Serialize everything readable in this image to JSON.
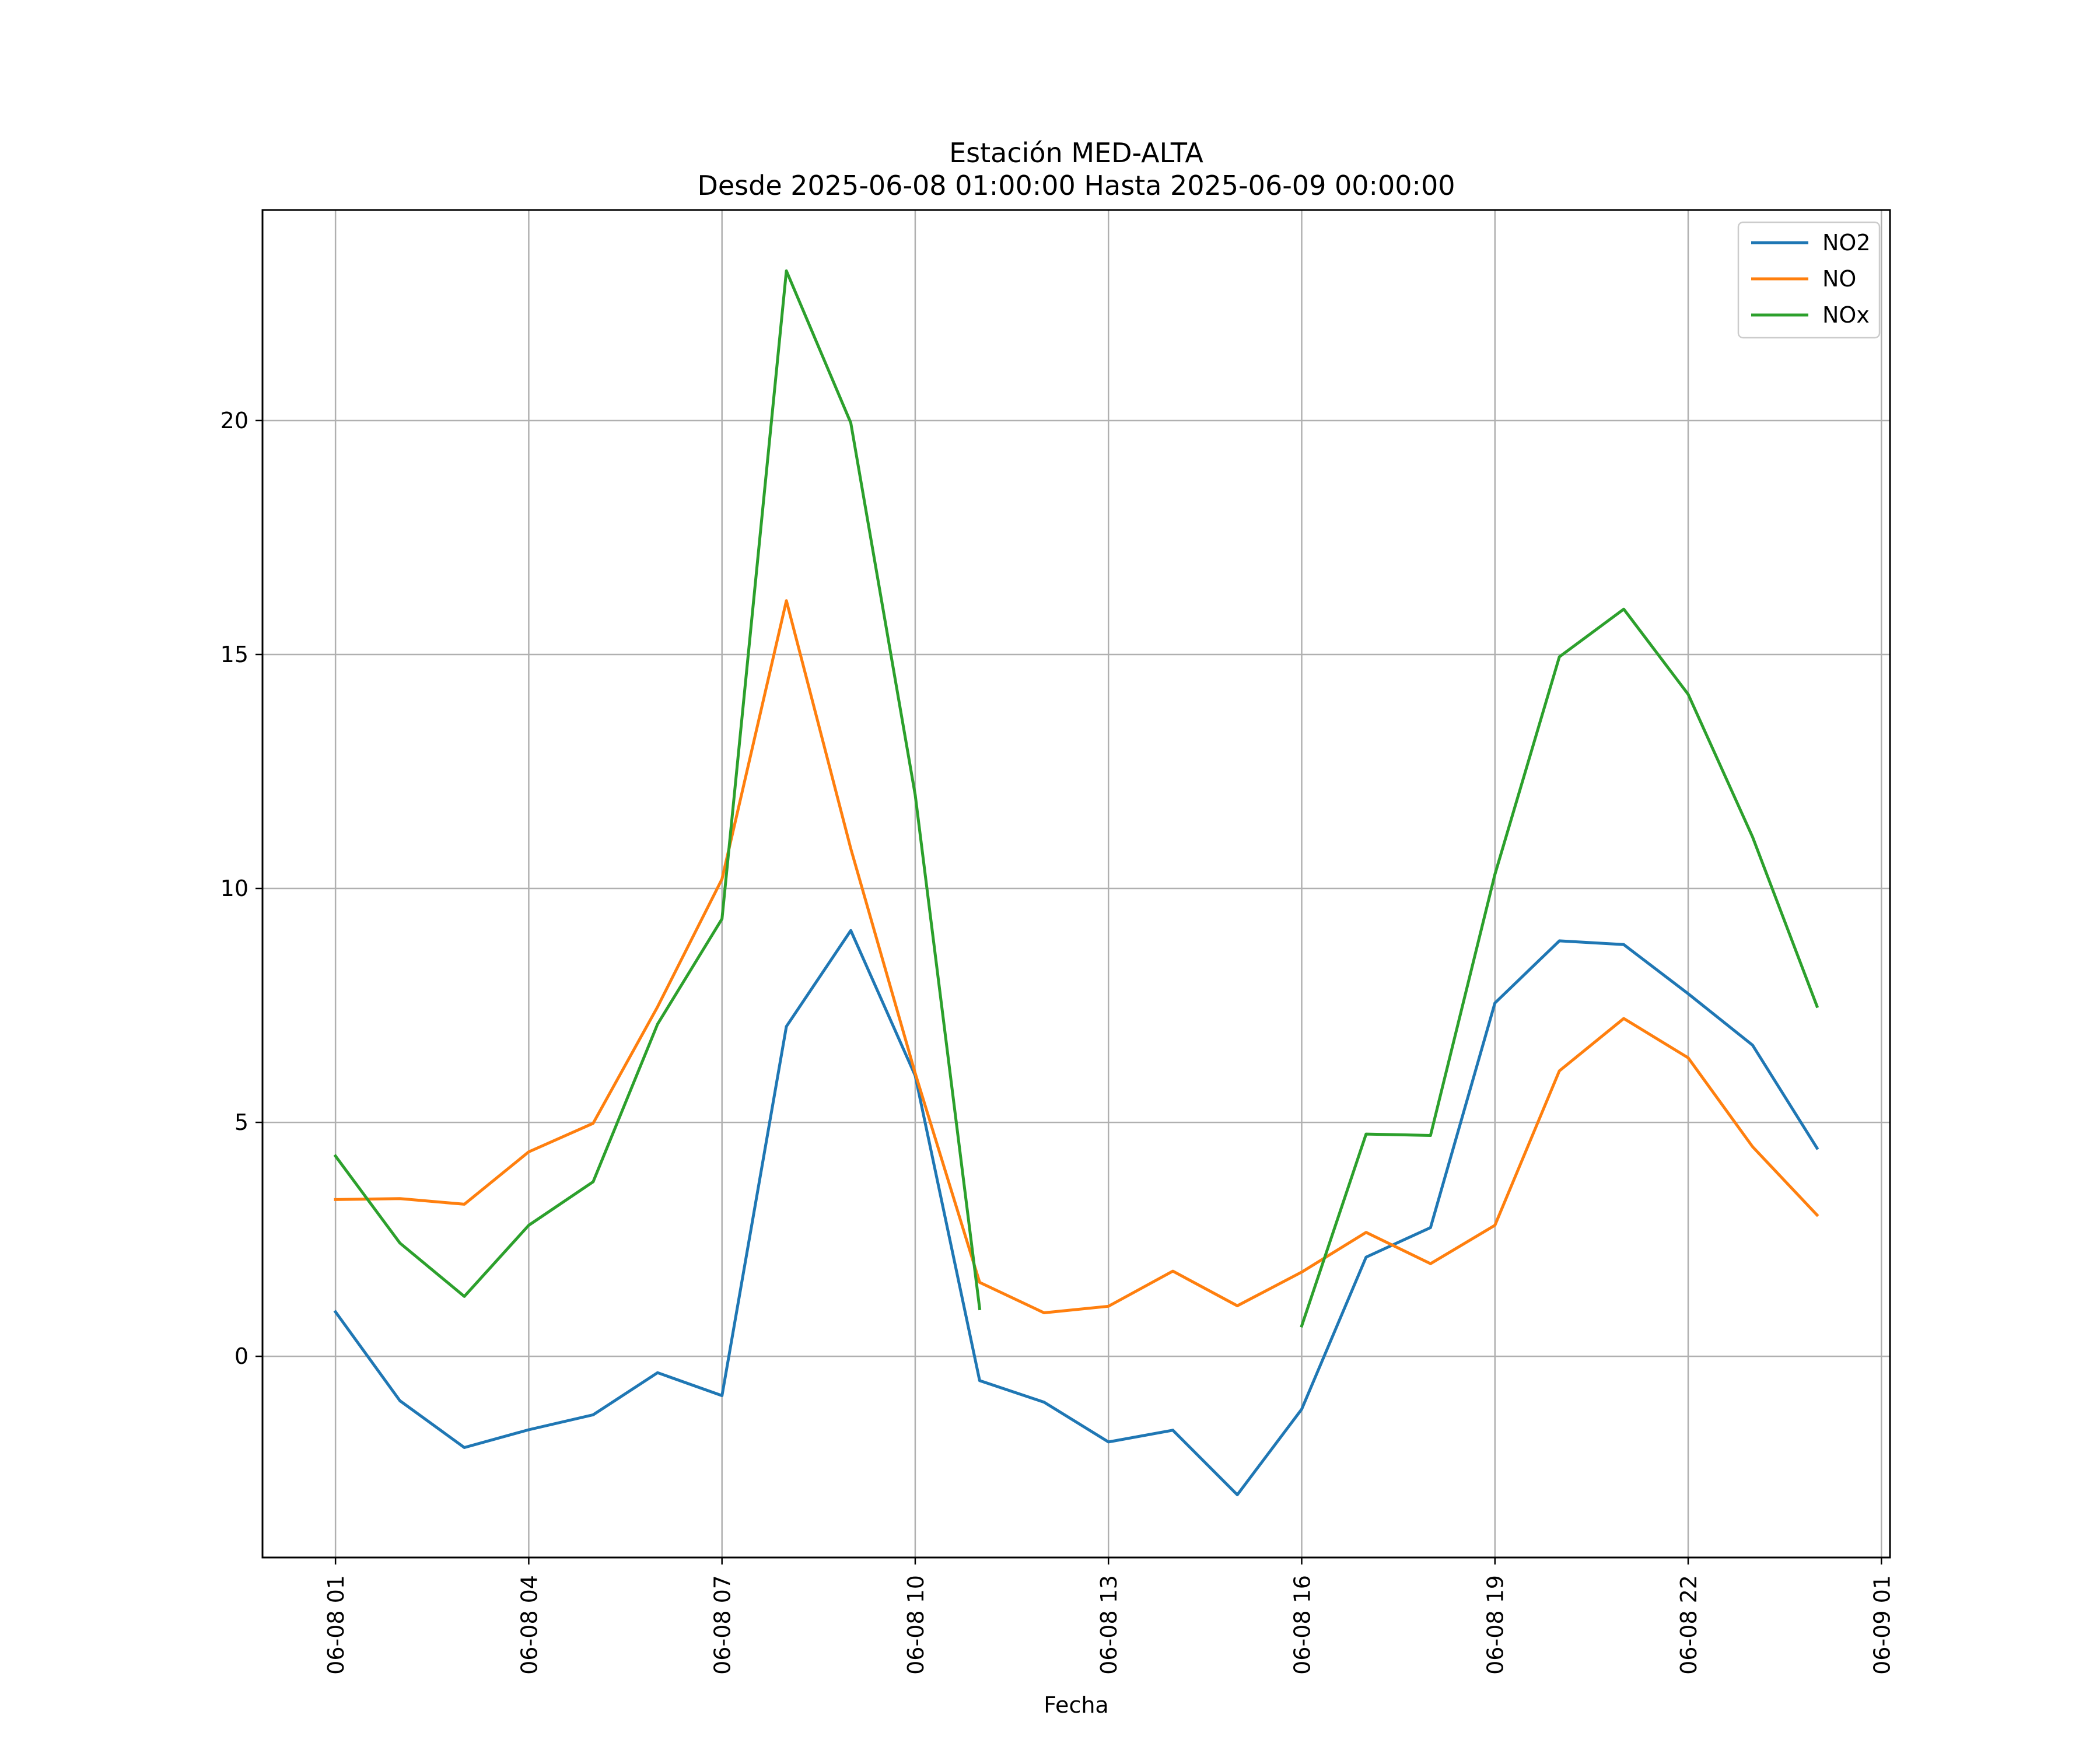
{
  "chart_data": {
    "type": "line",
    "title": "Estación MED-ALTA",
    "subtitle": "Desde 2025-06-08 01:00:00 Hasta 2025-06-09 00:00:00",
    "xlabel": "Fecha",
    "ylabel": "",
    "x": [
      "2025-06-08 01:00",
      "2025-06-08 02:00",
      "2025-06-08 03:00",
      "2025-06-08 04:00",
      "2025-06-08 05:00",
      "2025-06-08 06:00",
      "2025-06-08 07:00",
      "2025-06-08 08:00",
      "2025-06-08 09:00",
      "2025-06-08 10:00",
      "2025-06-08 11:00",
      "2025-06-08 12:00",
      "2025-06-08 13:00",
      "2025-06-08 14:00",
      "2025-06-08 15:00",
      "2025-06-08 16:00",
      "2025-06-08 17:00",
      "2025-06-08 18:00",
      "2025-06-08 19:00",
      "2025-06-08 20:00",
      "2025-06-08 21:00",
      "2025-06-08 22:00",
      "2025-06-08 23:00",
      "2025-06-09 00:00"
    ],
    "xlim": [
      "2025-06-07 23:52",
      "2025-06-09 01:08"
    ],
    "ylim": [
      -4.3,
      24.5
    ],
    "xticks": [
      {
        "value": "2025-06-08 01:00",
        "label": "06-08 01"
      },
      {
        "value": "2025-06-08 04:00",
        "label": "06-08 04"
      },
      {
        "value": "2025-06-08 07:00",
        "label": "06-08 07"
      },
      {
        "value": "2025-06-08 10:00",
        "label": "06-08 10"
      },
      {
        "value": "2025-06-08 13:00",
        "label": "06-08 13"
      },
      {
        "value": "2025-06-08 16:00",
        "label": "06-08 16"
      },
      {
        "value": "2025-06-08 19:00",
        "label": "06-08 19"
      },
      {
        "value": "2025-06-08 22:00",
        "label": "06-08 22"
      },
      {
        "value": "2025-06-09 01:00",
        "label": "06-09 01"
      }
    ],
    "yticks": [
      {
        "value": 0,
        "label": "0"
      },
      {
        "value": 5,
        "label": "5"
      },
      {
        "value": 10,
        "label": "10"
      },
      {
        "value": 15,
        "label": "15"
      },
      {
        "value": 20,
        "label": "20"
      }
    ],
    "grid": true,
    "legend_position": "top-right",
    "series": [
      {
        "name": "NO2",
        "color": "#1f77b4",
        "values": [
          0.95,
          -0.95,
          -1.95,
          -1.57,
          -1.25,
          -0.35,
          -0.84,
          7.05,
          9.1,
          6.0,
          -0.52,
          -0.98,
          -1.83,
          -1.58,
          -2.96,
          -1.13,
          2.12,
          2.75,
          7.55,
          8.88,
          8.8,
          7.75,
          6.65,
          4.45
        ]
      },
      {
        "name": "NO",
        "color": "#ff7f0e",
        "values": [
          3.35,
          3.37,
          3.25,
          4.37,
          4.98,
          7.47,
          10.2,
          16.15,
          10.85,
          6.05,
          1.58,
          0.93,
          1.07,
          1.82,
          1.08,
          1.8,
          2.65,
          1.98,
          2.8,
          6.1,
          7.22,
          6.38,
          4.48,
          3.02
        ]
      },
      {
        "name": "NOx",
        "color": "#2ca02c",
        "values": [
          4.28,
          2.42,
          1.28,
          2.8,
          3.73,
          7.1,
          9.35,
          23.2,
          19.95,
          12.0,
          1.02,
          null,
          null,
          null,
          null,
          0.65,
          4.75,
          4.72,
          10.3,
          14.95,
          15.97,
          14.15,
          11.1,
          7.48
        ]
      }
    ]
  }
}
